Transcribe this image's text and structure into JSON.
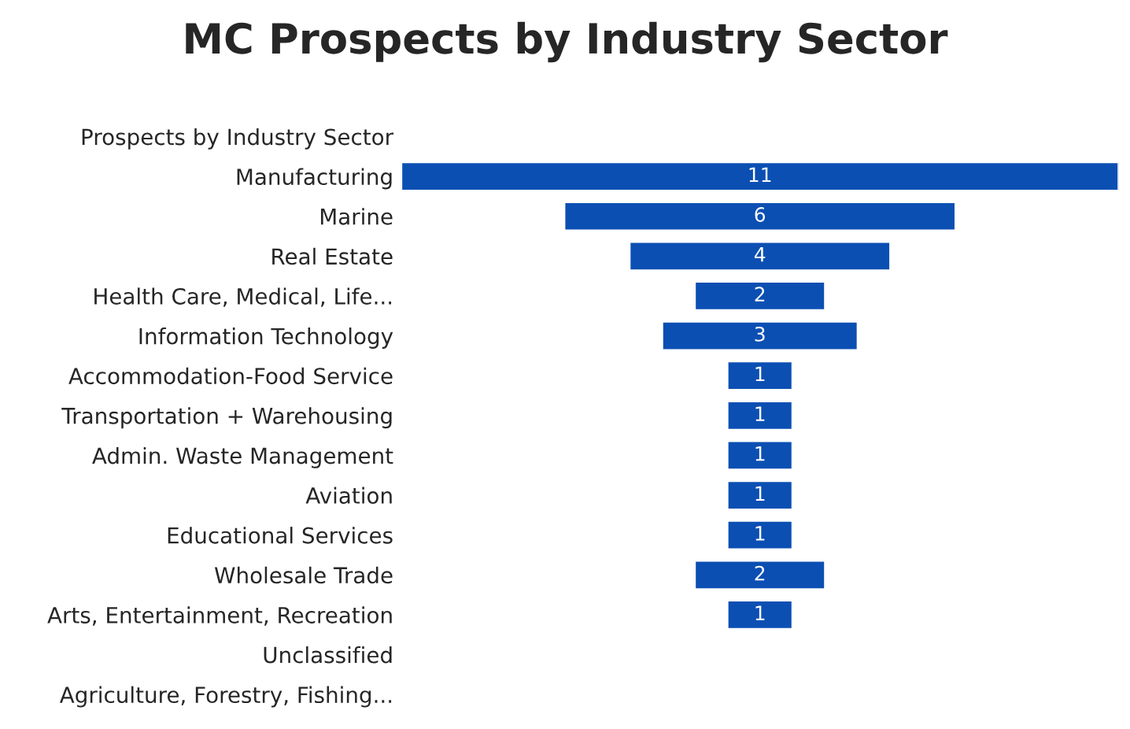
{
  "chart_data": {
    "type": "other",
    "title": "MC Prospects by Industry Sector",
    "categories": [
      "Prospects by Industry Sector",
      "Manufacturing",
      "Marine",
      "Real Estate",
      "Health Care, Medical, Life...",
      "Information Technology",
      "Accommodation-Food Service",
      "Transportation + Warehousing",
      "Admin. Waste Management",
      "Aviation",
      "Educational Services",
      "Wholesale Trade",
      "Arts, Entertainment, Recreation",
      "Unclassified",
      "Agriculture, Forestry, Fishing..."
    ],
    "values": [
      null,
      11,
      6,
      4,
      2,
      3,
      1,
      1,
      1,
      1,
      1,
      2,
      1,
      null,
      null
    ],
    "color": "#0b4fb3",
    "data_labels": true
  }
}
